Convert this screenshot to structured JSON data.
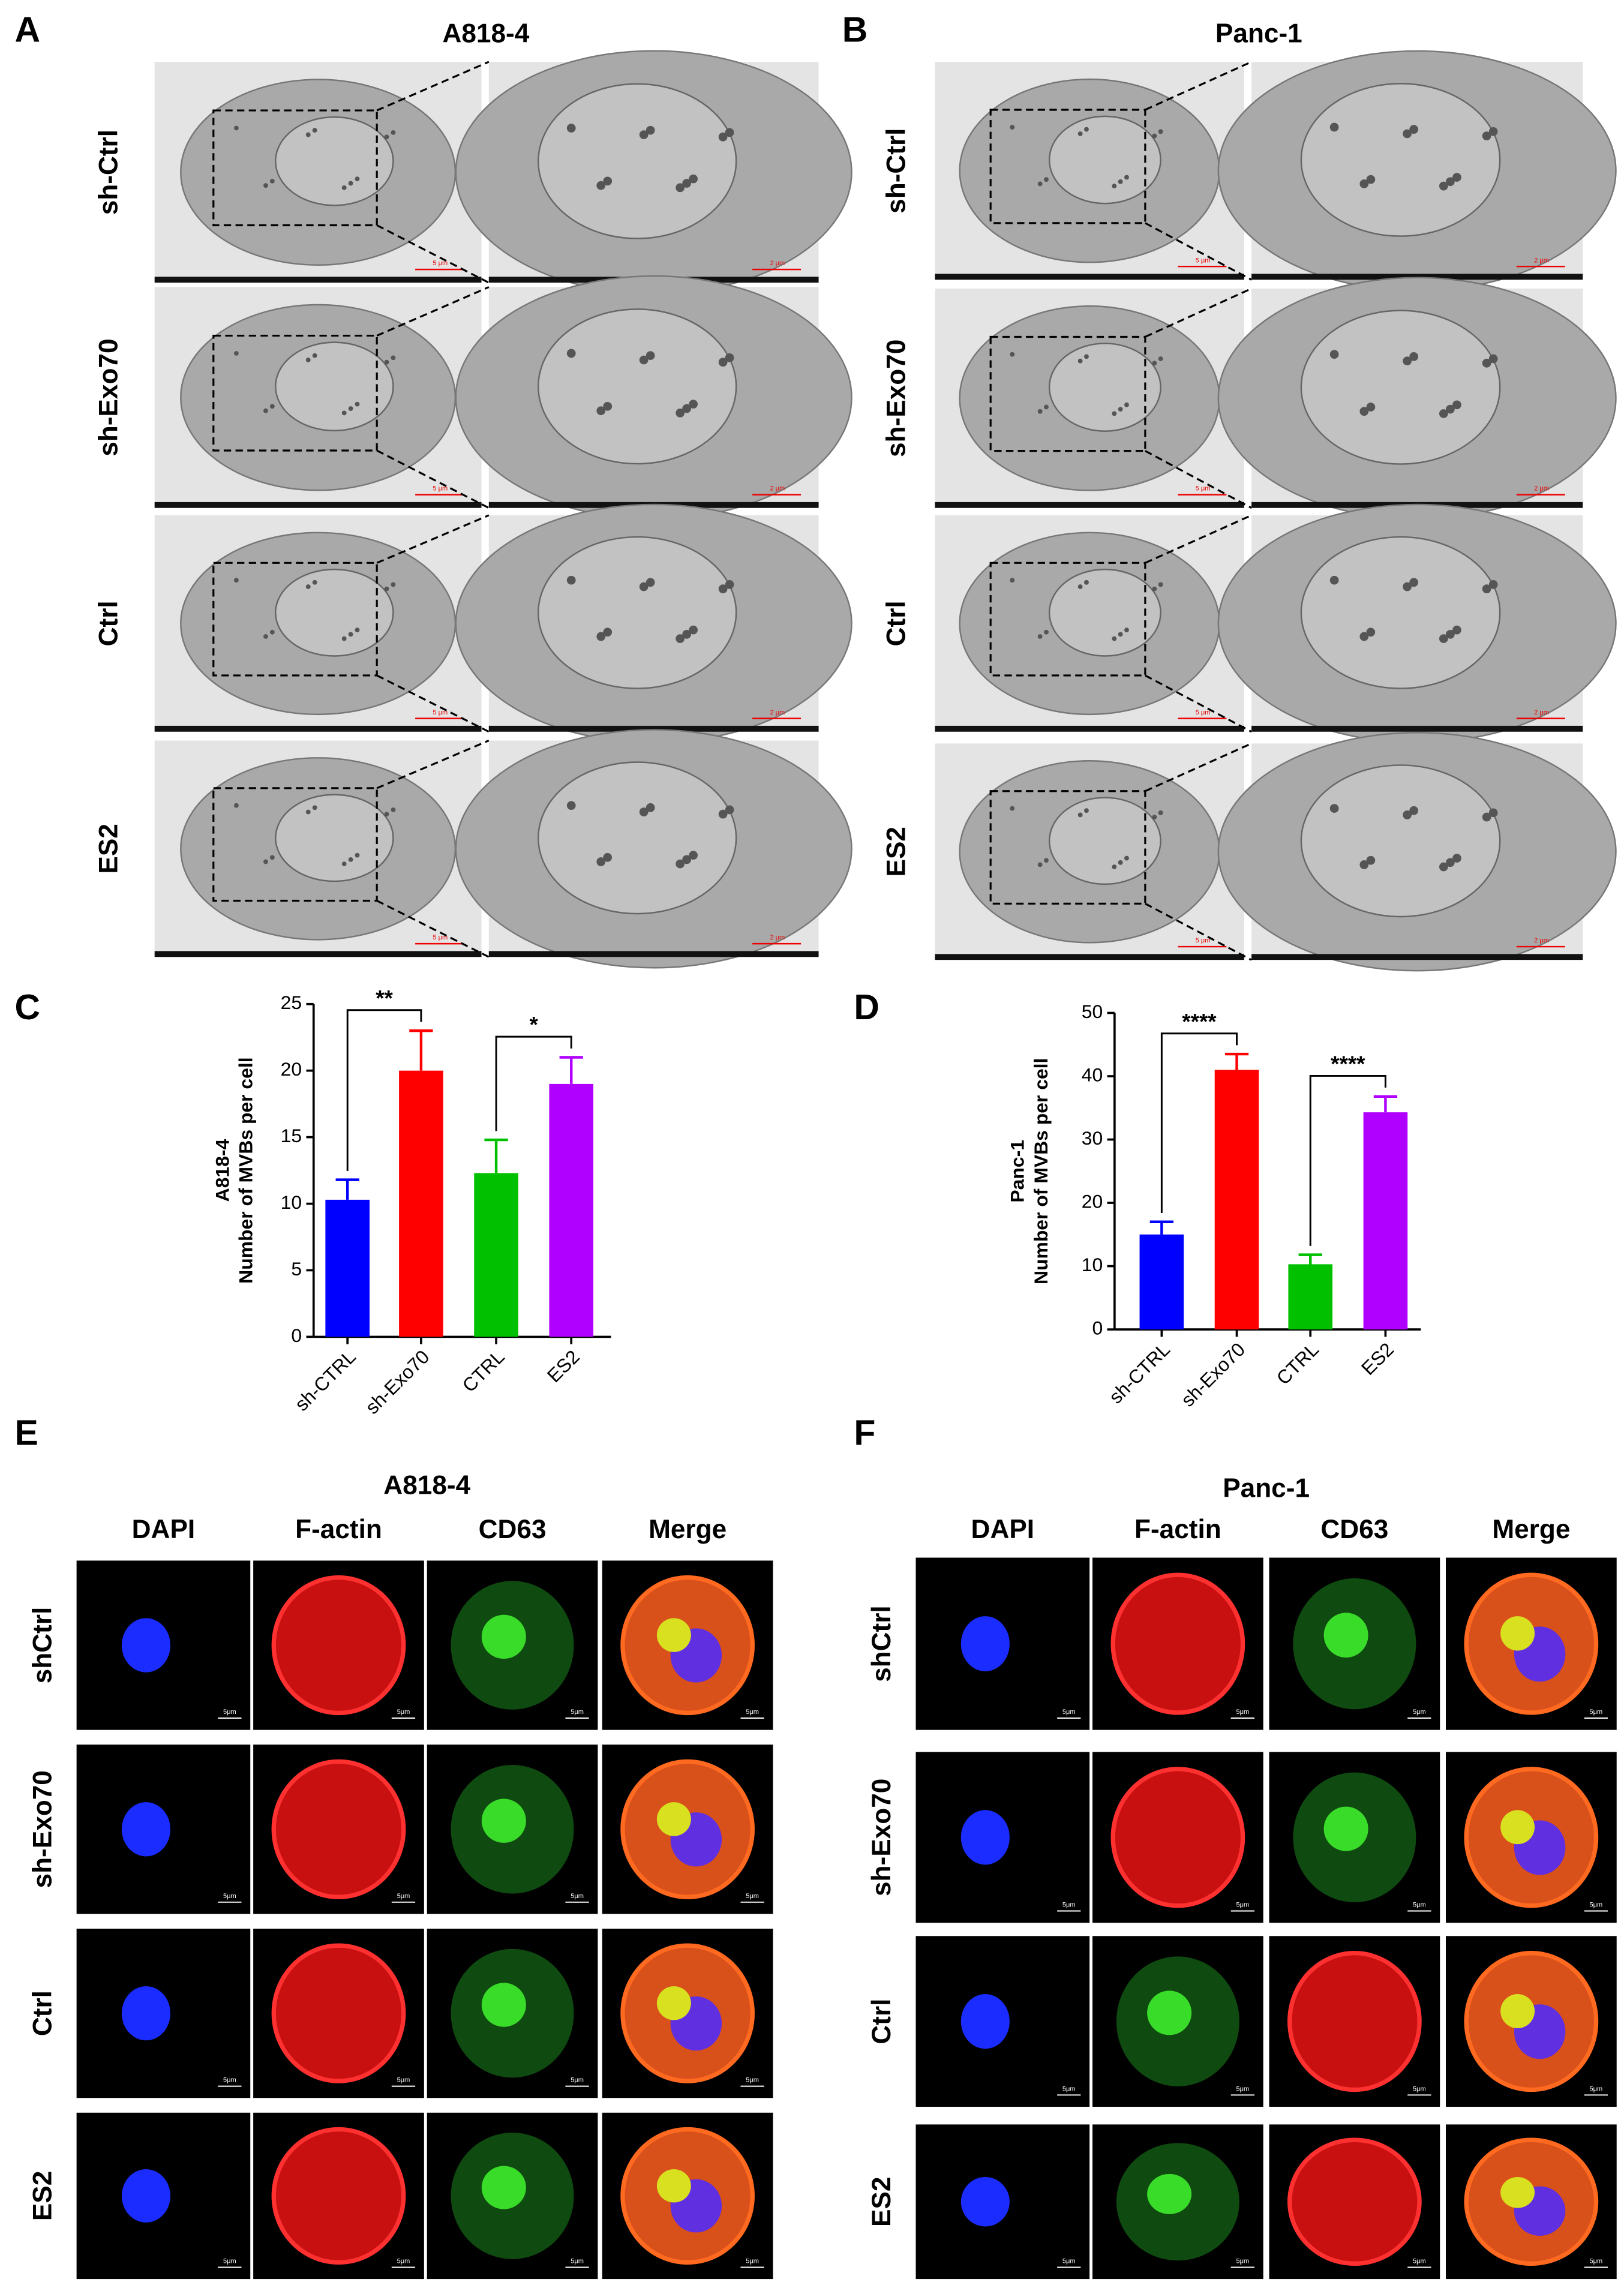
{
  "panels": {
    "A": {
      "letter": "A",
      "title": "A818-4",
      "rows": [
        "sh-Ctrl",
        "sh-Exo70",
        "Ctrl",
        "ES2"
      ],
      "scale_left": "5 μm",
      "scale_right": "2 μm"
    },
    "B": {
      "letter": "B",
      "title": "Panc-1",
      "rows": [
        "sh-Ctrl",
        "sh-Exo70",
        "Ctrl",
        "ES2"
      ],
      "scale_left": "5 μm",
      "scale_right": "2 μm"
    },
    "C": {
      "letter": "C"
    },
    "D": {
      "letter": "D"
    },
    "E": {
      "letter": "E",
      "title": "A818-4",
      "columns": [
        "DAPI",
        "F-actin",
        "CD63",
        "Merge"
      ],
      "rows": [
        "shCtrl",
        "sh-Exo70",
        "Ctrl",
        "ES2"
      ],
      "scale": "5μm"
    },
    "F": {
      "letter": "F",
      "title": "Panc-1",
      "columns": [
        "DAPI",
        "F-actin",
        "CD63",
        "Merge"
      ],
      "rows": [
        "shCtrl",
        "sh-Exo70",
        "Ctrl",
        "ES2"
      ],
      "scale": "5μm"
    }
  },
  "chart_data": [
    {
      "type": "bar",
      "ylabel_title": "A818-4",
      "ylabel": "Number of MVBs per cell",
      "categories": [
        "sh-CTRL",
        "sh-Exo70",
        "CTRL",
        "ES2"
      ],
      "values": [
        10.3,
        20,
        12.3,
        19
      ],
      "errors": [
        1.5,
        3,
        2.5,
        2
      ],
      "colors": [
        "#0000ff",
        "#ff0000",
        "#00c000",
        "#b000ff"
      ],
      "ylim": [
        0,
        25
      ],
      "yticks": [
        0,
        5,
        10,
        15,
        20,
        25
      ],
      "comparisons": [
        {
          "from": "sh-CTRL",
          "to": "sh-Exo70",
          "label": "**"
        },
        {
          "from": "CTRL",
          "to": "ES2",
          "label": "*"
        }
      ]
    },
    {
      "type": "bar",
      "ylabel_title": "Panc-1",
      "ylabel": "Number of MVBs per cell",
      "categories": [
        "sh-CTRL",
        "sh-Exo70",
        "CTRL",
        "ES2"
      ],
      "values": [
        15,
        41,
        10.3,
        34.3
      ],
      "errors": [
        2,
        2.5,
        1.5,
        2.5
      ],
      "colors": [
        "#0000ff",
        "#ff0000",
        "#00c000",
        "#b000ff"
      ],
      "ylim": [
        0,
        50
      ],
      "yticks": [
        0,
        10,
        20,
        30,
        40,
        50
      ],
      "comparisons": [
        {
          "from": "sh-CTRL",
          "to": "sh-Exo70",
          "label": "****"
        },
        {
          "from": "CTRL",
          "to": "ES2",
          "label": "****"
        }
      ]
    }
  ]
}
